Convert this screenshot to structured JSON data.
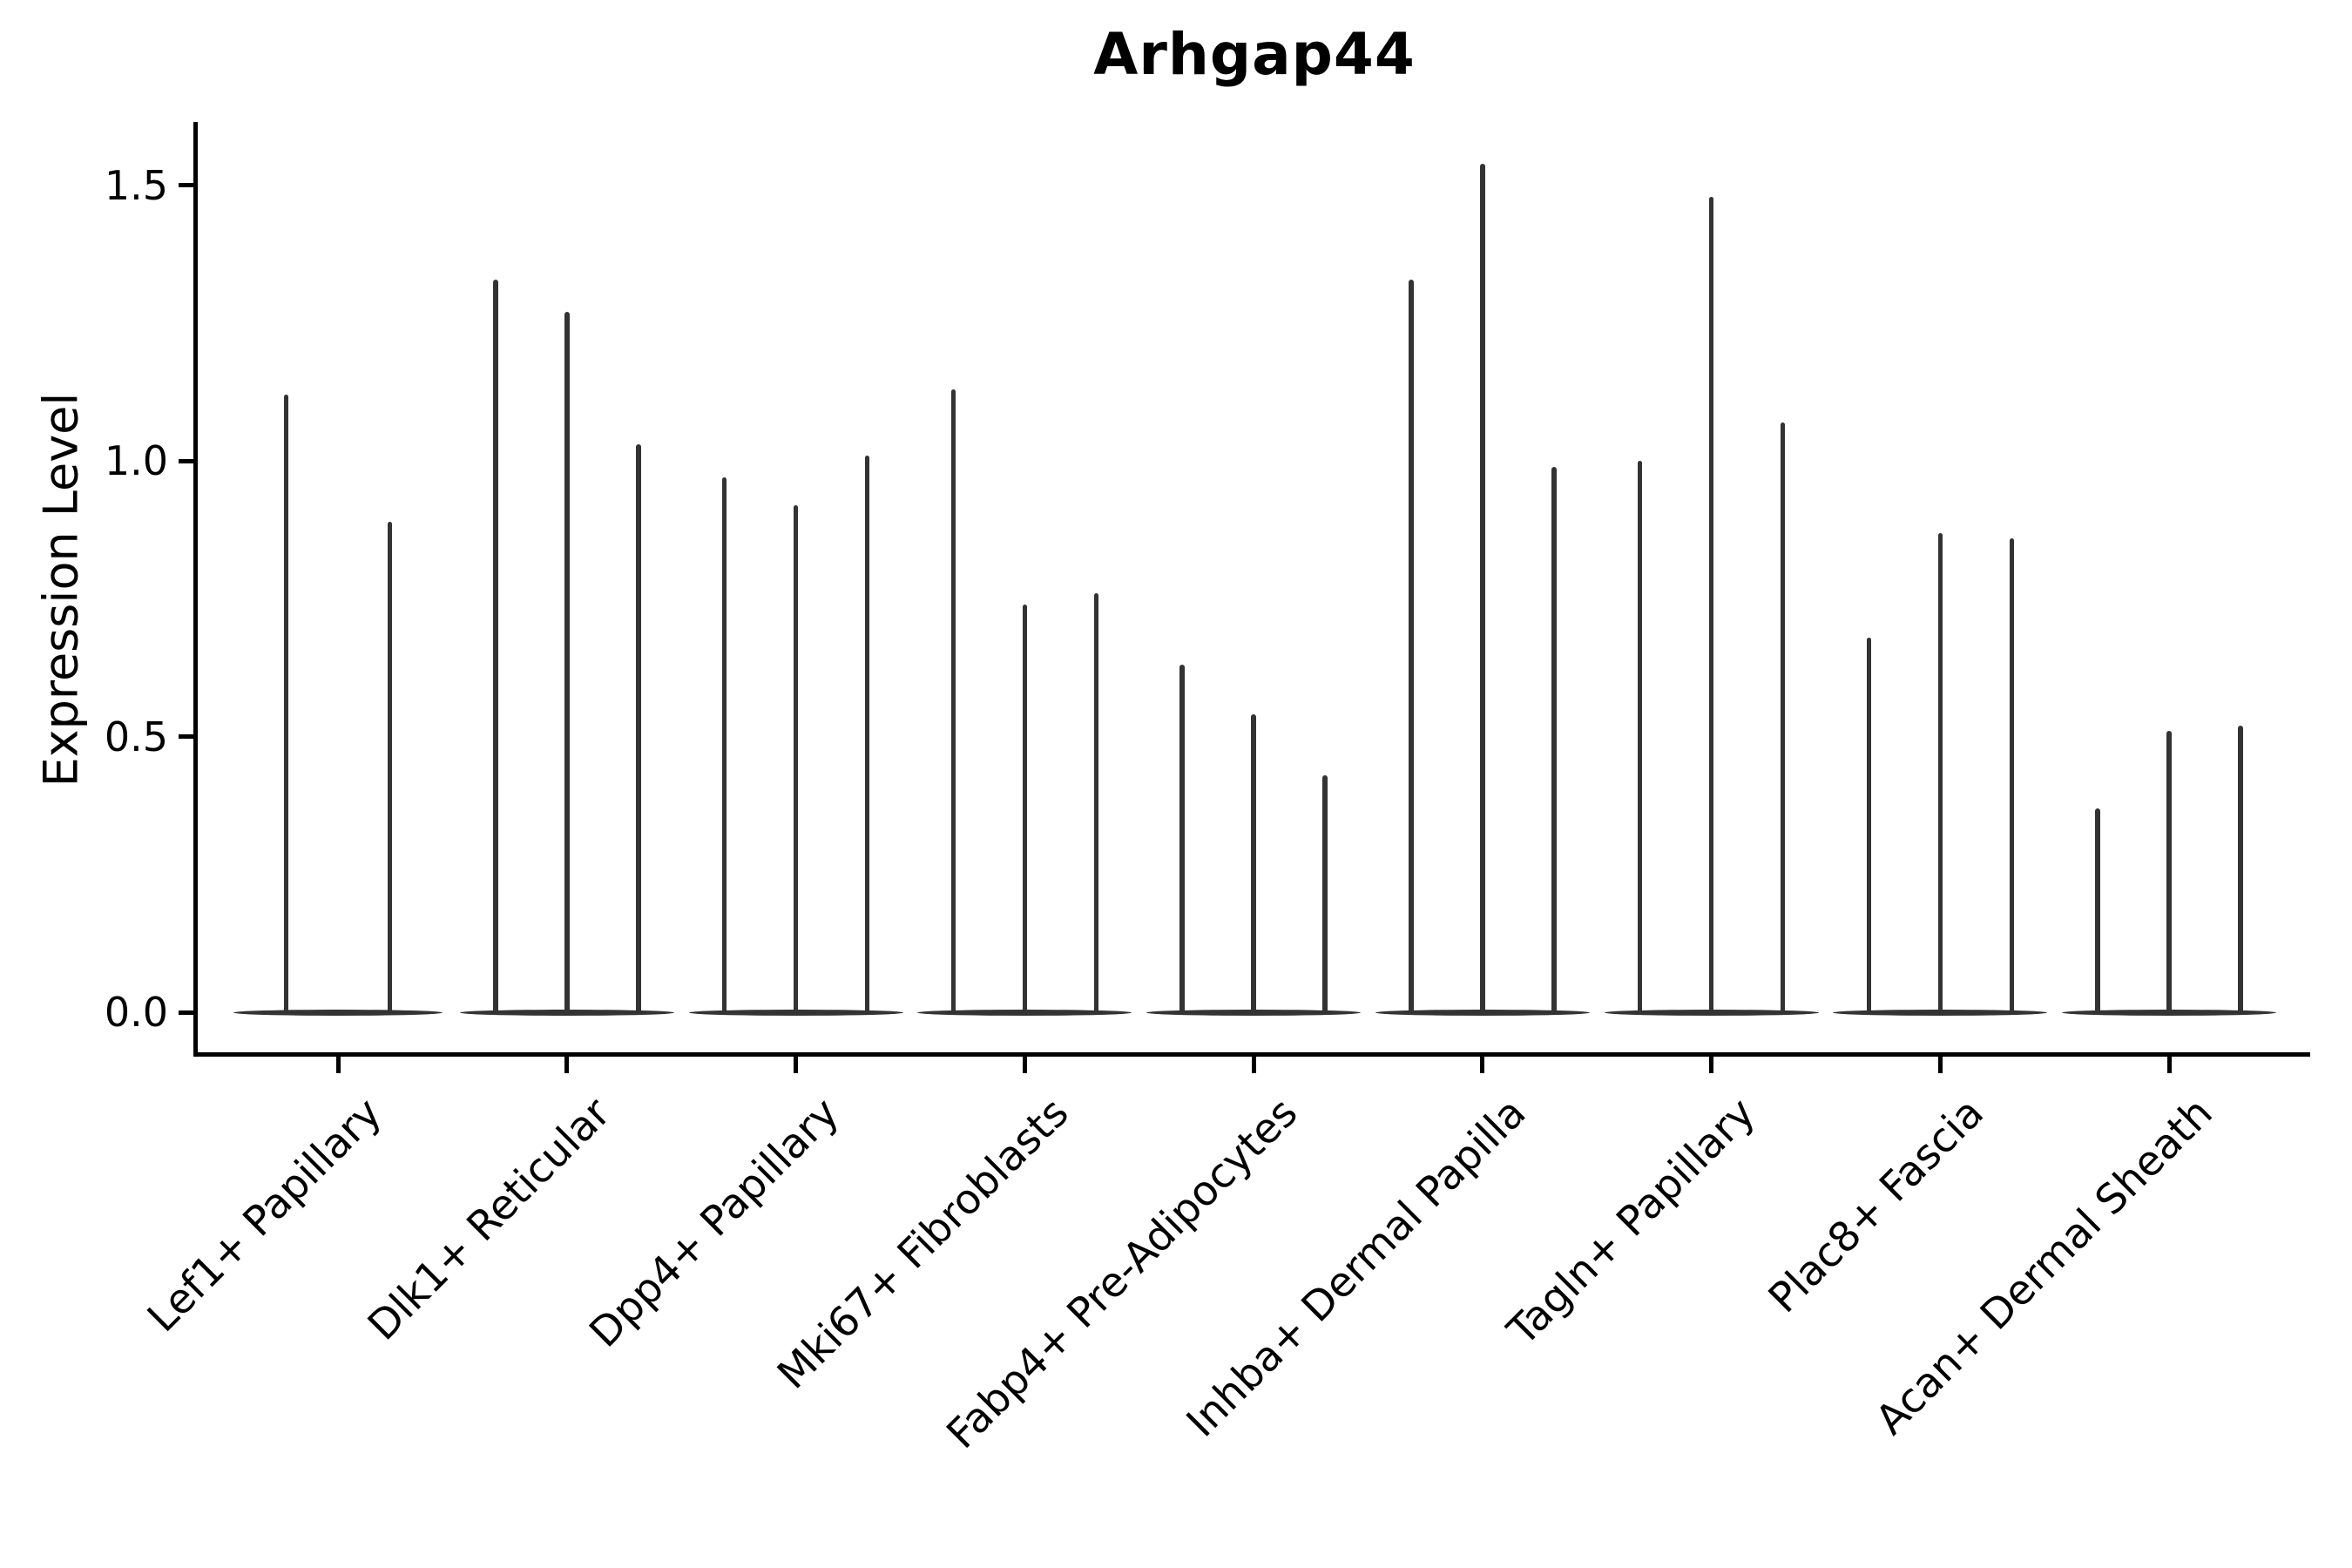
{
  "chart_data": {
    "type": "violin",
    "title": "Arhgap44",
    "ylabel": "Expression Level",
    "xlabel": "",
    "ytick_labels": [
      "0.0",
      "0.5",
      "1.0",
      "1.5"
    ],
    "ytick_values": [
      0.0,
      0.5,
      1.0,
      1.5
    ],
    "ylim": [
      -0.08,
      1.61
    ],
    "grid": false,
    "legend": "none",
    "violin_style": "needle-thin violins collapsed at zero with wide flat base",
    "categories": [
      {
        "label": "Lef1+ Papillary",
        "violin_maxima": [
          1.12,
          0.89
        ]
      },
      {
        "label": "Dlk1+ Reticular",
        "violin_maxima": [
          1.33,
          1.27,
          1.03
        ]
      },
      {
        "label": "Dpp4+ Papillary",
        "violin_maxima": [
          0.97,
          0.92,
          1.01
        ]
      },
      {
        "label": "Mki67+ Fibroblasts",
        "violin_maxima": [
          1.13,
          0.74,
          0.76
        ]
      },
      {
        "label": "Fabp4+ Pre-Adipocytes",
        "violin_maxima": [
          0.63,
          0.54,
          0.43
        ]
      },
      {
        "label": "Inhba+ Dermal Papilla",
        "violin_maxima": [
          1.33,
          1.54,
          0.99
        ]
      },
      {
        "label": "Tagln+ Papillary",
        "violin_maxima": [
          1.0,
          1.48,
          1.07
        ]
      },
      {
        "label": "Plac8+ Fascia",
        "violin_maxima": [
          0.68,
          0.87,
          0.86
        ]
      },
      {
        "label": "Acan+ Dermal Sheath",
        "violin_maxima": [
          0.37,
          0.51,
          0.52
        ]
      }
    ],
    "colors": {
      "violin": "#333333",
      "axis": "#000000",
      "text": "#000000",
      "background": "#ffffff"
    }
  }
}
